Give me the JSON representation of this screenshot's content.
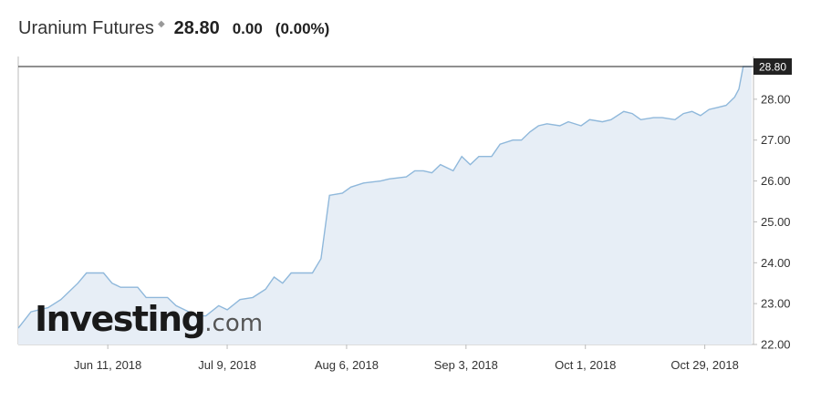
{
  "header": {
    "instrument": "Uranium Futures",
    "flag_icon": "diamond-flag-icon",
    "last": "28.80",
    "change": "0.00",
    "change_pct": "(0.00%)"
  },
  "watermark": {
    "brand": "Investing",
    "suffix": ".com"
  },
  "chart_data": {
    "type": "area",
    "title": "",
    "xlabel": "",
    "ylabel": "",
    "ylim": [
      22,
      28.8
    ],
    "yticks": [
      "22.00",
      "23.00",
      "24.00",
      "25.00",
      "26.00",
      "27.00",
      "28.00"
    ],
    "xticks": [
      {
        "label": "Jun 11, 2018",
        "x": "2018-06-11"
      },
      {
        "label": "Jul 9, 2018",
        "x": "2018-07-09"
      },
      {
        "label": "Aug 6, 2018",
        "x": "2018-08-06"
      },
      {
        "label": "Sep 3, 2018",
        "x": "2018-09-03"
      },
      {
        "label": "Oct 1, 2018",
        "x": "2018-10-01"
      },
      {
        "label": "Oct 29, 2018",
        "x": "2018-10-29"
      }
    ],
    "x_range": [
      "2018-05-21",
      "2018-11-06"
    ],
    "last_value": "28.80",
    "series": [
      {
        "points": [
          [
            "2018-05-21",
            22.4
          ],
          [
            "2018-05-24",
            22.8
          ],
          [
            "2018-05-28",
            22.9
          ],
          [
            "2018-05-31",
            23.1
          ],
          [
            "2018-06-04",
            23.5
          ],
          [
            "2018-06-06",
            23.75
          ],
          [
            "2018-06-10",
            23.75
          ],
          [
            "2018-06-12",
            23.5
          ],
          [
            "2018-06-14",
            23.4
          ],
          [
            "2018-06-18",
            23.4
          ],
          [
            "2018-06-20",
            23.15
          ],
          [
            "2018-06-25",
            23.15
          ],
          [
            "2018-06-27",
            22.95
          ],
          [
            "2018-07-02",
            22.7
          ],
          [
            "2018-07-04",
            22.7
          ],
          [
            "2018-07-07",
            22.95
          ],
          [
            "2018-07-09",
            22.85
          ],
          [
            "2018-07-12",
            23.1
          ],
          [
            "2018-07-15",
            23.15
          ],
          [
            "2018-07-18",
            23.35
          ],
          [
            "2018-07-20",
            23.65
          ],
          [
            "2018-07-22",
            23.5
          ],
          [
            "2018-07-24",
            23.75
          ],
          [
            "2018-07-29",
            23.75
          ],
          [
            "2018-07-31",
            24.1
          ],
          [
            "2018-08-02",
            25.65
          ],
          [
            "2018-08-05",
            25.7
          ],
          [
            "2018-08-07",
            25.85
          ],
          [
            "2018-08-10",
            25.95
          ],
          [
            "2018-08-14",
            26.0
          ],
          [
            "2018-08-16",
            26.05
          ],
          [
            "2018-08-20",
            26.1
          ],
          [
            "2018-08-22",
            26.25
          ],
          [
            "2018-08-24",
            26.25
          ],
          [
            "2018-08-26",
            26.2
          ],
          [
            "2018-08-28",
            26.4
          ],
          [
            "2018-08-31",
            26.25
          ],
          [
            "2018-09-02",
            26.6
          ],
          [
            "2018-09-04",
            26.4
          ],
          [
            "2018-09-06",
            26.6
          ],
          [
            "2018-09-09",
            26.6
          ],
          [
            "2018-09-11",
            26.9
          ],
          [
            "2018-09-14",
            27.0
          ],
          [
            "2018-09-16",
            27.0
          ],
          [
            "2018-09-18",
            27.2
          ],
          [
            "2018-09-20",
            27.35
          ],
          [
            "2018-09-22",
            27.4
          ],
          [
            "2018-09-25",
            27.35
          ],
          [
            "2018-09-27",
            27.45
          ],
          [
            "2018-09-30",
            27.35
          ],
          [
            "2018-10-02",
            27.5
          ],
          [
            "2018-10-05",
            27.45
          ],
          [
            "2018-10-07",
            27.5
          ],
          [
            "2018-10-10",
            27.7
          ],
          [
            "2018-10-12",
            27.65
          ],
          [
            "2018-10-14",
            27.5
          ],
          [
            "2018-10-17",
            27.55
          ],
          [
            "2018-10-19",
            27.55
          ],
          [
            "2018-10-22",
            27.5
          ],
          [
            "2018-10-24",
            27.65
          ],
          [
            "2018-10-26",
            27.7
          ],
          [
            "2018-10-28",
            27.6
          ],
          [
            "2018-10-30",
            27.75
          ],
          [
            "2018-11-01",
            27.8
          ],
          [
            "2018-11-03",
            27.85
          ],
          [
            "2018-11-05",
            28.05
          ],
          [
            "2018-11-06",
            28.25
          ],
          [
            "2018-11-07",
            28.8
          ],
          [
            "2018-11-09",
            28.8
          ]
        ]
      }
    ]
  },
  "colors": {
    "line": "#8fb8db",
    "fill": "#e7eef6",
    "last_line": "#222222",
    "tag_bg": "#222222",
    "axis": "#bbbbbb",
    "watermark": "#1a1a1a"
  }
}
